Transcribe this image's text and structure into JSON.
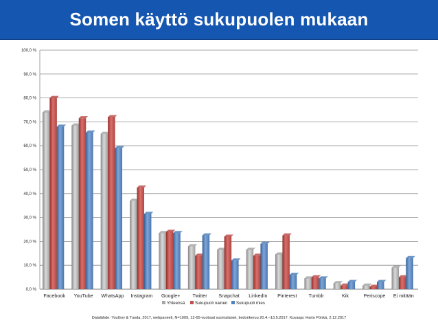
{
  "header": {
    "title": "Somen käyttö sukupuolen mukaan",
    "background": "#1556b0",
    "text_color": "#ffffff"
  },
  "chart_data": {
    "type": "bar",
    "title": "",
    "xlabel": "",
    "ylabel": "",
    "ylim": [
      0,
      100
    ],
    "y_ticks": [
      0,
      10,
      20,
      30,
      40,
      50,
      60,
      70,
      80,
      90,
      100
    ],
    "y_tick_labels": [
      "0,0 %",
      "10,0 %",
      "20,0 %",
      "30,0 %",
      "40,0 %",
      "50,0 %",
      "60,0 %",
      "70,0 %",
      "80,0 %",
      "90,0 %",
      "100,0 %"
    ],
    "grid": true,
    "legend_position": "bottom",
    "categories": [
      "Facebook",
      "YouTube",
      "WhatsApp",
      "Instagram",
      "Google+",
      "Twitter",
      "Snapchat",
      "LinkedIn",
      "Pinterest",
      "Tumblr",
      "Kik",
      "Periscope",
      "Ei mitään"
    ],
    "series": [
      {
        "name": "Yhteensä",
        "color": "#a6a6a6",
        "values": [
          74,
          68.5,
          65,
          37,
          23.5,
          18,
          16.5,
          16.5,
          14.5,
          4.5,
          2.5,
          1.5,
          9
        ]
      },
      {
        "name": "Sukupuoli nainen",
        "color": "#c0504d",
        "values": [
          80,
          71.5,
          72,
          42.5,
          24,
          14,
          22,
          14,
          22.5,
          5,
          1.5,
          1,
          5
        ]
      },
      {
        "name": "Sukupuoli mies",
        "color": "#4f81bd",
        "values": [
          68,
          65.5,
          59,
          31.5,
          23.5,
          22.5,
          12,
          19,
          6,
          4.5,
          3,
          3,
          13
        ]
      }
    ],
    "source": "Datalähde: YouGov & Tuoda, 2017, webpaneeli, N=1009, 12-65-vuotiaat suomalaiset, tiedonkeruu 20.4.–13.5.2017. Kuvaaja: Harto Pönkä, 2.12.2017"
  }
}
